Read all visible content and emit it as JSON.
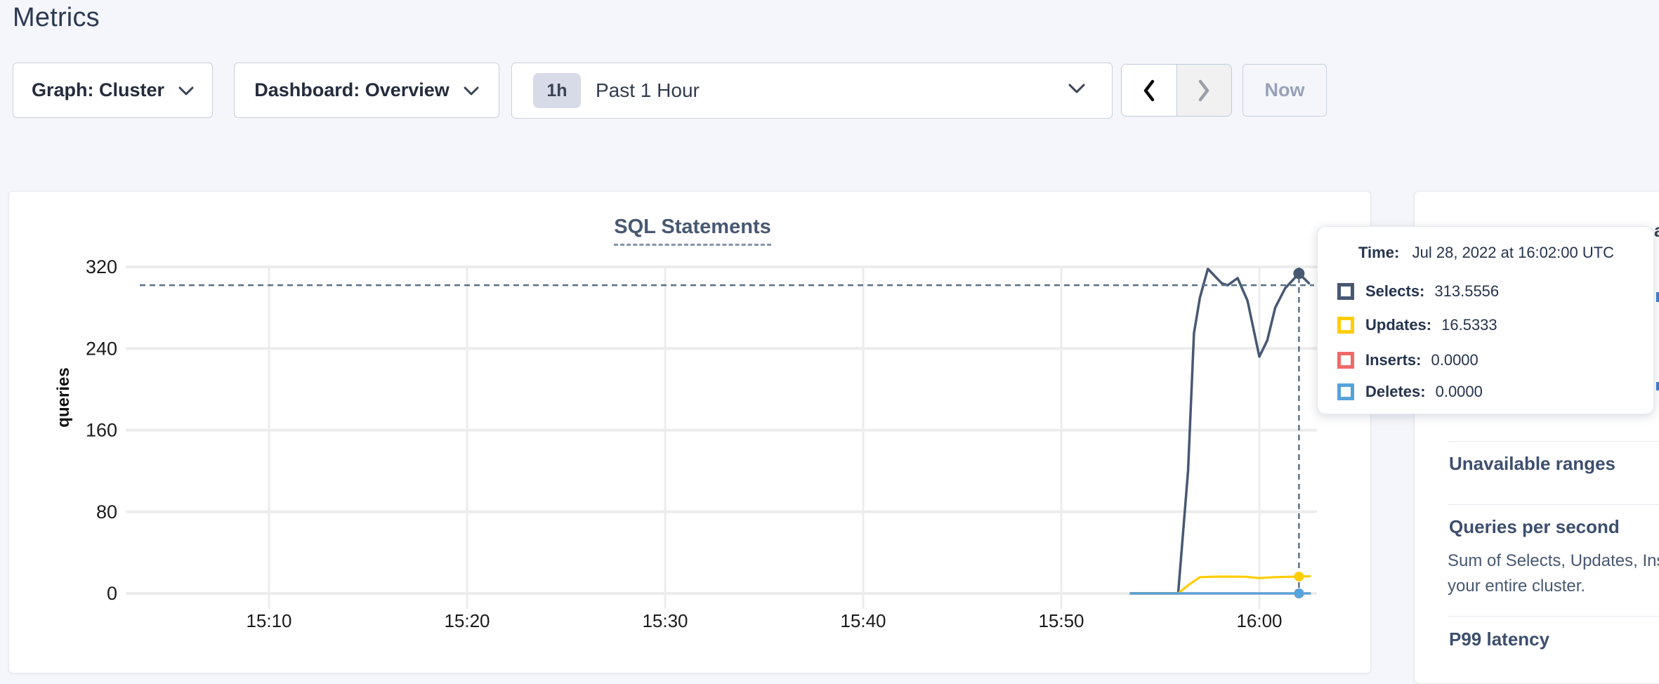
{
  "page": {
    "title": "Metrics"
  },
  "toolbar": {
    "graph_dropdown_label": "Graph: Cluster",
    "dashboard_dropdown_label": "Dashboard: Overview",
    "time_badge": "1h",
    "time_label": "Past 1 Hour",
    "now_button_label": "Now"
  },
  "chart_data": {
    "type": "line",
    "title": "SQL Statements",
    "ylabel": "queries",
    "xlabel": "",
    "grid": true,
    "legend_position": "none",
    "ylim": [
      0,
      335
    ],
    "yticks": [
      0,
      80,
      160,
      240,
      320
    ],
    "xticks": [
      {
        "label": "15:10",
        "t": 10
      },
      {
        "label": "15:20",
        "t": 20
      },
      {
        "label": "15:30",
        "t": 30
      },
      {
        "label": "15:40",
        "t": 40
      },
      {
        "label": "15:50",
        "t": 50
      },
      {
        "label": "16:00",
        "t": 60
      }
    ],
    "x_unit": "minutes after 15:00 UTC",
    "x_visible_range": [
      2.8,
      62.9
    ],
    "series": [
      {
        "name": "Selects",
        "color": "#475872",
        "points": [
          [
            53.5,
            0
          ],
          [
            55.9,
            0
          ],
          [
            56.4,
            120
          ],
          [
            56.7,
            255
          ],
          [
            57.0,
            290
          ],
          [
            57.4,
            318
          ],
          [
            58.1,
            304
          ],
          [
            58.4,
            302
          ],
          [
            58.9,
            309
          ],
          [
            59.4,
            287
          ],
          [
            60.0,
            232
          ],
          [
            60.4,
            248
          ],
          [
            60.8,
            280
          ],
          [
            61.3,
            299
          ],
          [
            62.0,
            313.5556
          ],
          [
            62.5,
            304
          ]
        ]
      },
      {
        "name": "Updates",
        "color": "#ffcd02",
        "points": [
          [
            53.5,
            0
          ],
          [
            55.9,
            0
          ],
          [
            56.4,
            8
          ],
          [
            57.0,
            16
          ],
          [
            58.0,
            16.5
          ],
          [
            59.3,
            16.3
          ],
          [
            60.0,
            15
          ],
          [
            60.8,
            16
          ],
          [
            62.0,
            16.5333
          ],
          [
            62.55,
            16.8
          ]
        ]
      },
      {
        "name": "Inserts",
        "color": "#f16969",
        "points": [
          [
            53.5,
            0
          ],
          [
            62.55,
            0
          ]
        ]
      },
      {
        "name": "Deletes",
        "color": "#55a3dc",
        "points": [
          [
            53.5,
            0
          ],
          [
            62.55,
            0
          ]
        ]
      }
    ],
    "hover_markers": [
      {
        "series": "Selects",
        "t": 62,
        "value": 313.5556,
        "color": "#475872",
        "r": 8
      },
      {
        "series": "Updates",
        "t": 62,
        "value": 16.5333,
        "color": "#ffcd02",
        "r": 7
      },
      {
        "series": "Inserts",
        "t": 62,
        "value": 0,
        "color": "#f16969",
        "r": 7
      },
      {
        "series": "Deletes",
        "t": 62,
        "value": 0,
        "color": "#55a3dc",
        "r": 7
      }
    ],
    "guideline": {
      "t": 62,
      "y_value": 302
    }
  },
  "tooltip": {
    "time_label": "Time:",
    "time_value": "Jul 28, 2022 at 16:02:00 UTC",
    "rows": [
      {
        "label": "Selects:",
        "value": "313.5556",
        "color": "#475872"
      },
      {
        "label": "Updates:",
        "value": "16.5333",
        "color": "#ffcd02"
      },
      {
        "label": "Inserts:",
        "value": "0.0000",
        "color": "#f16969"
      },
      {
        "label": "Deletes:",
        "value": "0.0000",
        "color": "#55a3dc"
      }
    ]
  },
  "sidebar": {
    "clipped_text_fragment": "a",
    "sections": [
      {
        "title": "Unavailable ranges"
      },
      {
        "title": "Queries per second",
        "desc_line1": "Sum of Selects, Updates, Inser",
        "desc_line2": "your entire cluster."
      },
      {
        "title": "P99 latency"
      }
    ]
  },
  "colors": {
    "page_bg": "#f4f6fb",
    "card_border": "#e7e9f0",
    "title_slate": "#475872",
    "guideline": "#5a7186",
    "gridline": "#ececec"
  }
}
